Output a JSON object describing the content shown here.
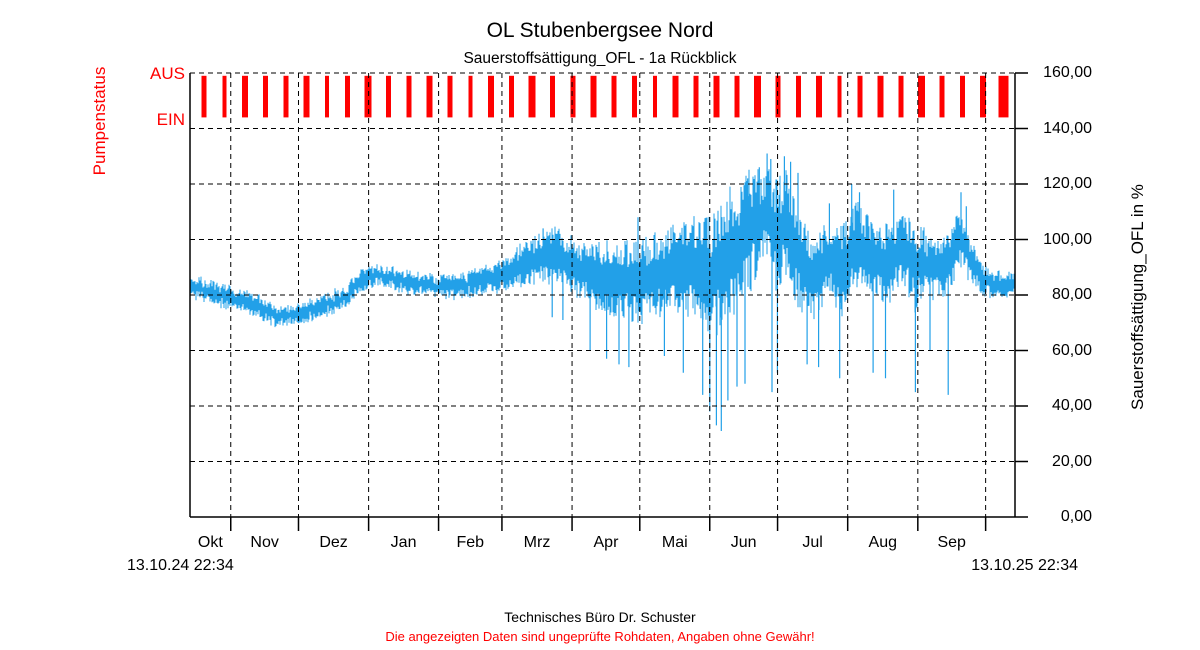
{
  "header": {
    "title": "OL Stubenbergsee Nord",
    "subtitle": "Sauerstoffsättigung_OFL - 1a Rückblick"
  },
  "footer": {
    "company": "Technisches Büro Dr. Schuster",
    "disclaimer": "Die angezeigten Daten sind ungeprüfte Rohdaten, Angaben ohne Gewähr!"
  },
  "colors": {
    "series_blue": "#22A0E8",
    "pump_red": "#ff0000",
    "axis_text_red": "#ff0000",
    "grid_black": "#000000"
  },
  "chart_data": {
    "type": "line",
    "title": "OL Stubenbergsee Nord",
    "subtitle": "Sauerstoffsättigung_OFL - 1a Rückblick",
    "ylabel_right": "Sauerstoffsättigung_OFL in %",
    "ylabel_left": "Pumpenstatus",
    "x_start_label": "13.10.24 22:34",
    "x_end_label": "13.10.25 22:34",
    "x_months": [
      "Okt",
      "Nov",
      "Dez",
      "Jan",
      "Feb",
      "Mrz",
      "Apr",
      "Mai",
      "Jun",
      "Jul",
      "Aug",
      "Sep"
    ],
    "month_boundaries_t": [
      0.0494,
      0.1315,
      0.2165,
      0.3013,
      0.3781,
      0.4631,
      0.5452,
      0.63,
      0.7122,
      0.7972,
      0.8822,
      0.9644
    ],
    "month_label_centers_t": [
      0.0247,
      0.0905,
      0.174,
      0.2589,
      0.3397,
      0.4206,
      0.5042,
      0.5876,
      0.6711,
      0.7547,
      0.8397,
      0.9233
    ],
    "y_ticks": [
      "160,00",
      "140,00",
      "120,00",
      "100,00",
      "80,00",
      "60,00",
      "40,00",
      "20,00",
      "0,00"
    ],
    "y_tick_values": [
      160,
      140,
      120,
      100,
      80,
      60,
      40,
      20,
      0
    ],
    "ylim": [
      0,
      160
    ],
    "grid": "dashed",
    "legend": "none",
    "pump_status": {
      "labels": {
        "off": "AUS",
        "on": "EIN"
      },
      "bar_value_top": 159,
      "bar_value_bottom": 144,
      "bars": [
        [
          0.017,
          5
        ],
        [
          0.0418,
          4
        ],
        [
          0.0667,
          6
        ],
        [
          0.0915,
          5
        ],
        [
          0.1164,
          5
        ],
        [
          0.1412,
          6
        ],
        [
          0.1661,
          4
        ],
        [
          0.1909,
          5
        ],
        [
          0.2158,
          7
        ],
        [
          0.2406,
          5
        ],
        [
          0.2655,
          5
        ],
        [
          0.2903,
          6
        ],
        [
          0.3152,
          5
        ],
        [
          0.34,
          4
        ],
        [
          0.3648,
          6
        ],
        [
          0.3897,
          5
        ],
        [
          0.4145,
          7
        ],
        [
          0.4394,
          5
        ],
        [
          0.4642,
          5
        ],
        [
          0.4891,
          6
        ],
        [
          0.5139,
          5
        ],
        [
          0.5388,
          5
        ],
        [
          0.5636,
          4
        ],
        [
          0.5885,
          6
        ],
        [
          0.6133,
          5
        ],
        [
          0.6382,
          6
        ],
        [
          0.663,
          5
        ],
        [
          0.6879,
          7
        ],
        [
          0.7127,
          5
        ],
        [
          0.7376,
          5
        ],
        [
          0.7624,
          6
        ],
        [
          0.7873,
          4
        ],
        [
          0.8121,
          5
        ],
        [
          0.837,
          6
        ],
        [
          0.8618,
          5
        ],
        [
          0.8867,
          7
        ],
        [
          0.9115,
          5
        ],
        [
          0.9364,
          5
        ],
        [
          0.9612,
          6
        ],
        [
          0.9861,
          10
        ]
      ]
    },
    "series": {
      "name": "Sauerstoffsättigung_OFL",
      "unit": "%",
      "noise_seed": 7,
      "profile": [
        [
          0.0,
          83,
          4
        ],
        [
          0.025,
          81,
          4
        ],
        [
          0.05,
          79,
          4
        ],
        [
          0.08,
          76,
          4
        ],
        [
          0.105,
          72,
          4
        ],
        [
          0.132,
          73,
          4
        ],
        [
          0.16,
          76,
          4
        ],
        [
          0.19,
          79,
          4
        ],
        [
          0.205,
          85,
          4
        ],
        [
          0.225,
          87,
          4
        ],
        [
          0.26,
          85,
          4
        ],
        [
          0.303,
          83,
          4
        ],
        [
          0.34,
          84,
          5
        ],
        [
          0.379,
          87,
          6
        ],
        [
          0.41,
          91,
          9
        ],
        [
          0.44,
          95,
          10
        ],
        [
          0.464,
          90,
          11
        ],
        [
          0.5,
          87,
          13
        ],
        [
          0.525,
          85,
          15
        ],
        [
          0.546,
          84,
          16
        ],
        [
          0.58,
          89,
          16
        ],
        [
          0.61,
          91,
          18
        ],
        [
          0.632,
          86,
          23
        ],
        [
          0.646,
          92,
          27
        ],
        [
          0.665,
          98,
          25
        ],
        [
          0.685,
          105,
          20
        ],
        [
          0.7,
          110,
          17
        ],
        [
          0.712,
          101,
          22
        ],
        [
          0.722,
          107,
          19
        ],
        [
          0.735,
          96,
          19
        ],
        [
          0.755,
          86,
          16
        ],
        [
          0.775,
          93,
          14
        ],
        [
          0.79,
          89,
          17
        ],
        [
          0.805,
          99,
          16
        ],
        [
          0.825,
          94,
          14
        ],
        [
          0.845,
          91,
          15
        ],
        [
          0.862,
          96,
          12
        ],
        [
          0.879,
          91,
          17
        ],
        [
          0.895,
          91,
          11
        ],
        [
          0.915,
          89,
          13
        ],
        [
          0.933,
          101,
          12
        ],
        [
          0.947,
          92,
          8
        ],
        [
          0.96,
          86,
          6
        ],
        [
          0.975,
          84,
          5
        ],
        [
          0.99,
          83,
          5
        ],
        [
          1.0,
          86,
          4
        ]
      ],
      "spikes": [
        [
          0.428,
          104
        ],
        [
          0.439,
          72
        ],
        [
          0.452,
          71
        ],
        [
          0.485,
          60
        ],
        [
          0.505,
          57
        ],
        [
          0.52,
          55
        ],
        [
          0.532,
          54
        ],
        [
          0.543,
          108
        ],
        [
          0.575,
          58
        ],
        [
          0.598,
          52
        ],
        [
          0.6215,
          44
        ],
        [
          0.63,
          38
        ],
        [
          0.638,
          33
        ],
        [
          0.644,
          31
        ],
        [
          0.652,
          42
        ],
        [
          0.663,
          47
        ],
        [
          0.6727,
          48
        ],
        [
          0.676,
          122
        ],
        [
          0.69,
          126
        ],
        [
          0.6995,
          131
        ],
        [
          0.704,
          129
        ],
        [
          0.7055,
          45
        ],
        [
          0.712,
          52
        ],
        [
          0.7205,
          130
        ],
        [
          0.728,
          128
        ],
        [
          0.737,
          124
        ],
        [
          0.748,
          55
        ],
        [
          0.762,
          54
        ],
        [
          0.775,
          113
        ],
        [
          0.7875,
          50
        ],
        [
          0.802,
          120
        ],
        [
          0.8115,
          117
        ],
        [
          0.828,
          52
        ],
        [
          0.843,
          50
        ],
        [
          0.853,
          118
        ],
        [
          0.8793,
          45
        ],
        [
          0.897,
          60
        ],
        [
          0.919,
          44
        ],
        [
          0.9345,
          117
        ],
        [
          0.941,
          112
        ]
      ]
    }
  }
}
